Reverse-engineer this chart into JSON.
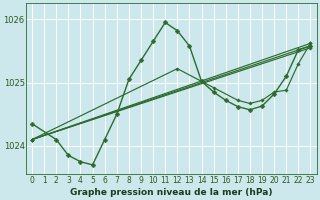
{
  "title": "Graphe pression niveau de la mer (hPa)",
  "bg_color": "#cce8ec",
  "grid_color": "#ffffff",
  "line_color": "#2d6b2d",
  "xlim": [
    -0.5,
    23.5
  ],
  "ylim": [
    1023.55,
    1026.25
  ],
  "yticks": [
    1024,
    1025,
    1026
  ],
  "xtick_labels": [
    "0",
    "1",
    "2",
    "3",
    "4",
    "5",
    "6",
    "7",
    "8",
    "9",
    "10",
    "11",
    "12",
    "13",
    "14",
    "15",
    "16",
    "17",
    "18",
    "19",
    "20",
    "21",
    "22",
    "23"
  ],
  "lines": [
    {
      "x": [
        0,
        2,
        3,
        4,
        5,
        6,
        7,
        8,
        9,
        10,
        11,
        12,
        13,
        14,
        15,
        16,
        17,
        18,
        19,
        20,
        21,
        22,
        23
      ],
      "y": [
        1024.35,
        1024.1,
        1023.85,
        1023.75,
        1023.7,
        1024.1,
        1024.5,
        1025.05,
        1025.35,
        1025.65,
        1025.95,
        1025.82,
        1025.58,
        1025.02,
        1024.85,
        1024.72,
        1024.62,
        1024.57,
        1024.63,
        1024.82,
        1025.1,
        1025.52,
        1025.58
      ]
    },
    {
      "x": [
        0,
        23
      ],
      "y": [
        1024.1,
        1025.62
      ]
    },
    {
      "x": [
        0,
        23
      ],
      "y": [
        1024.1,
        1025.58
      ]
    },
    {
      "x": [
        0,
        23
      ],
      "y": [
        1024.1,
        1025.55
      ]
    },
    {
      "x": [
        0,
        12,
        15,
        17,
        18,
        19,
        20,
        21,
        22,
        23
      ],
      "y": [
        1024.1,
        1025.22,
        1024.92,
        1024.72,
        1024.67,
        1024.72,
        1024.85,
        1024.88,
        1025.3,
        1025.62
      ]
    }
  ],
  "title_fontsize": 6.5,
  "tick_fontsize": 5.5,
  "ytick_fontsize": 6.0
}
